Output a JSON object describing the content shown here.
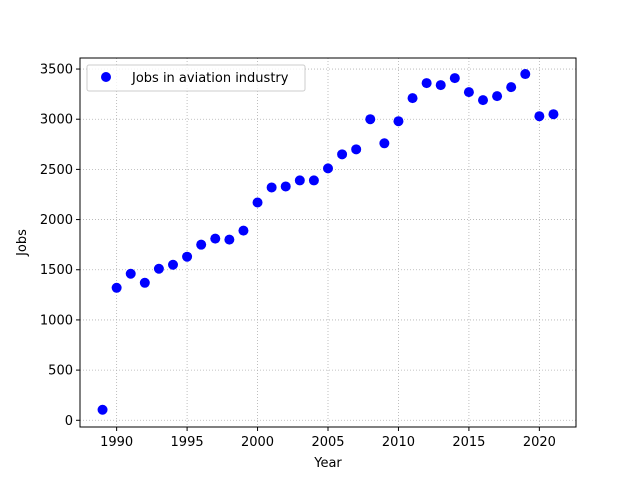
{
  "chart_data": {
    "type": "scatter",
    "title": "",
    "xlabel": "Year",
    "ylabel": "Jobs",
    "xlim": [
      1987.4,
      2022.6
    ],
    "ylim": [
      -67,
      3610
    ],
    "xticks": [
      1990,
      1995,
      2000,
      2005,
      2010,
      2015,
      2020
    ],
    "yticks": [
      0,
      500,
      1000,
      1500,
      2000,
      2500,
      3000,
      3500
    ],
    "grid": true,
    "grid_style": "dotted",
    "legend_position": "top-left",
    "series": [
      {
        "name": "Jobs in aviation industry",
        "color": "#0000ff",
        "marker": "circle",
        "x": [
          1989,
          1990,
          1991,
          1992,
          1993,
          1994,
          1995,
          1996,
          1997,
          1998,
          1999,
          2000,
          2001,
          2002,
          2003,
          2004,
          2005,
          2006,
          2007,
          2008,
          2009,
          2010,
          2011,
          2012,
          2013,
          2014,
          2015,
          2016,
          2017,
          2018,
          2019,
          2020,
          2021
        ],
        "y": [
          105,
          1320,
          1460,
          1370,
          1510,
          1550,
          1630,
          1750,
          1810,
          1800,
          1890,
          2170,
          2320,
          2330,
          2390,
          2390,
          2510,
          2650,
          2700,
          3000,
          2760,
          2980,
          3210,
          3360,
          3340,
          3410,
          3270,
          3190,
          3230,
          3320,
          3450,
          3030,
          3050
        ]
      }
    ]
  }
}
